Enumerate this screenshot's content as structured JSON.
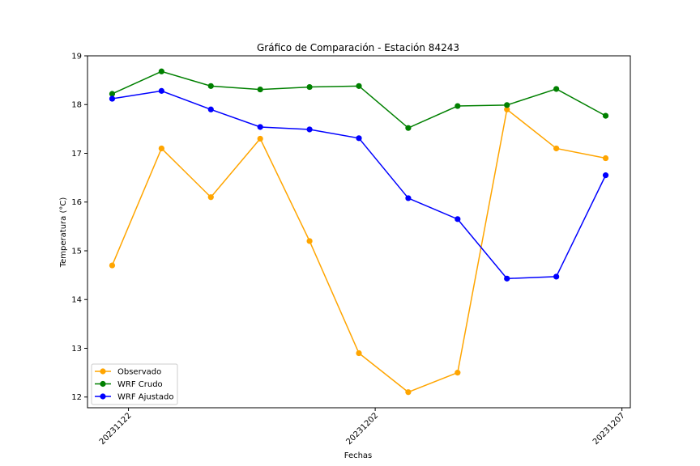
{
  "chart_data": {
    "type": "line",
    "title": "Gráfico de Comparación - Estación 84243",
    "xlabel": "Fechas",
    "ylabel": "Temperatura (°C)",
    "x_tick_labels": [
      "20231122",
      "20231202",
      "20231207"
    ],
    "x_tick_positions": [
      0.33,
      5.33,
      10.33
    ],
    "x_domain": [
      -0.5,
      10.5
    ],
    "y_ticks": [
      12,
      13,
      14,
      15,
      16,
      17,
      18,
      19
    ],
    "ylim": [
      11.78,
      19.0
    ],
    "grid": false,
    "legend_position": "lower-left",
    "series": [
      {
        "name": "Observado",
        "color": "#FFA500",
        "values": [
          14.7,
          17.1,
          16.1,
          17.3,
          15.2,
          12.9,
          12.1,
          12.5,
          17.9,
          17.1,
          16.9
        ]
      },
      {
        "name": "WRF Crudo",
        "color": "#008000",
        "values": [
          18.22,
          18.68,
          18.38,
          18.31,
          18.36,
          18.38,
          17.52,
          17.97,
          17.99,
          18.32,
          17.77
        ]
      },
      {
        "name": "WRF Ajustado",
        "color": "#0000FF",
        "values": [
          18.12,
          18.28,
          17.9,
          17.54,
          17.49,
          17.31,
          16.08,
          15.65,
          14.43,
          14.47,
          16.55
        ]
      }
    ]
  }
}
